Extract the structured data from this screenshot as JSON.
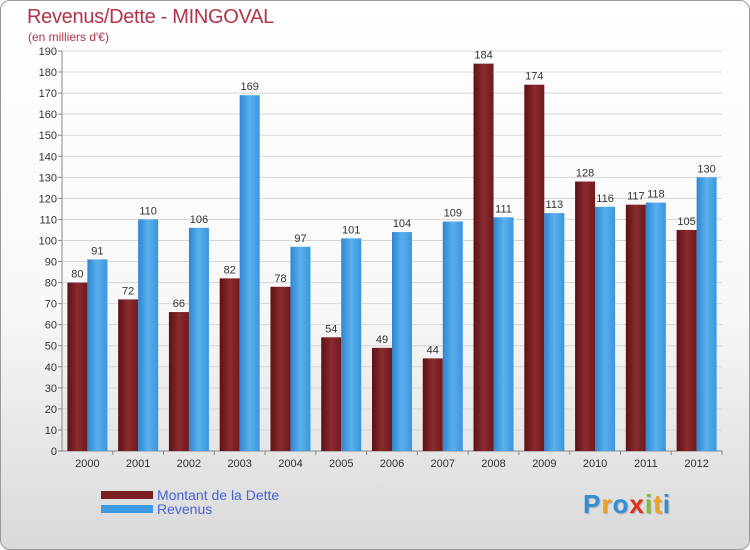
{
  "chart_data": {
    "type": "bar",
    "title": "Revenus/Dette - MINGOVAL",
    "subtitle": "(en milliers d'€)",
    "categories": [
      "2000",
      "2001",
      "2002",
      "2003",
      "2004",
      "2005",
      "2006",
      "2007",
      "2008",
      "2009",
      "2010",
      "2011",
      "2012"
    ],
    "series": [
      {
        "name": "Montant de la Dette",
        "color": "#7a1f22",
        "values": [
          80,
          72,
          66,
          82,
          78,
          54,
          49,
          44,
          184,
          174,
          128,
          117,
          105
        ]
      },
      {
        "name": "Revenus",
        "color": "#3d9be4",
        "values": [
          91,
          110,
          106,
          169,
          97,
          101,
          104,
          109,
          111,
          113,
          116,
          118,
          130
        ]
      }
    ],
    "ylim": [
      0,
      190
    ],
    "ytick_step": 10,
    "grid": true,
    "legend_position": "bottom-left"
  },
  "logo": {
    "letters": [
      "P",
      "r",
      "o",
      "x",
      "i",
      "t",
      "i"
    ],
    "colors": [
      "#2f8fd8",
      "#f0a020",
      "#2f8fd8",
      "#e03020",
      "#7bbf2a",
      "#f0a020",
      "#2f8fd8"
    ]
  }
}
